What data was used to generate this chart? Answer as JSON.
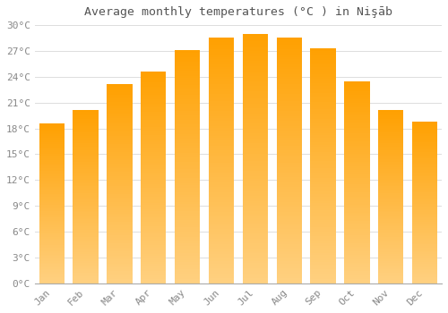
{
  "title": "Average monthly temperatures (°C ) in Nişāb",
  "months": [
    "Jan",
    "Feb",
    "Mar",
    "Apr",
    "May",
    "Jun",
    "Jul",
    "Aug",
    "Sep",
    "Oct",
    "Nov",
    "Dec"
  ],
  "values": [
    18.6,
    20.1,
    23.1,
    24.6,
    27.1,
    28.6,
    29.0,
    28.6,
    27.3,
    23.5,
    20.1,
    18.8
  ],
  "bar_color_dark": "#FFA000",
  "bar_color_light": "#FFD080",
  "background_color": "#FFFFFF",
  "grid_color": "#DDDDDD",
  "ylim": [
    0,
    30
  ],
  "yticks": [
    0,
    3,
    6,
    9,
    12,
    15,
    18,
    21,
    24,
    27,
    30
  ],
  "title_fontsize": 9.5,
  "tick_fontsize": 8,
  "font_color": "#888888",
  "title_color": "#555555"
}
